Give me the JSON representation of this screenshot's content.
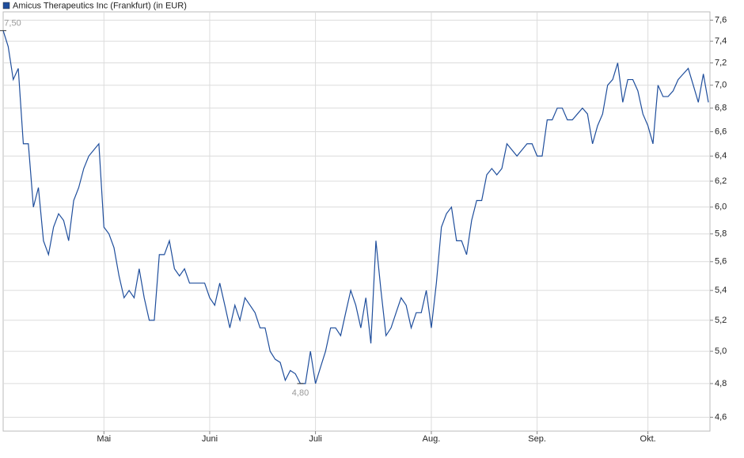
{
  "chart_data": {
    "type": "line",
    "log_y": true,
    "grid": true,
    "categories": [
      null,
      null,
      null,
      null,
      null,
      null,
      null,
      null,
      null,
      null,
      null,
      null,
      null,
      null,
      null,
      null,
      null,
      null,
      null,
      null,
      "Mai",
      null,
      null,
      null,
      null,
      null,
      null,
      null,
      null,
      null,
      null,
      null,
      null,
      null,
      null,
      null,
      null,
      null,
      null,
      null,
      null,
      "Juni",
      null,
      null,
      null,
      null,
      null,
      null,
      null,
      null,
      null,
      null,
      null,
      null,
      null,
      null,
      null,
      null,
      null,
      null,
      null,
      null,
      "Juli",
      null,
      null,
      null,
      null,
      null,
      null,
      null,
      null,
      null,
      null,
      null,
      null,
      null,
      null,
      null,
      null,
      null,
      null,
      null,
      null,
      null,
      null,
      "Aug.",
      null,
      null,
      null,
      null,
      null,
      null,
      null,
      null,
      null,
      null,
      null,
      null,
      null,
      null,
      null,
      null,
      null,
      null,
      null,
      null,
      "Sep.",
      null,
      null,
      null,
      null,
      null,
      null,
      null,
      null,
      null,
      null,
      null,
      null,
      null,
      null,
      null,
      null,
      null,
      null,
      null,
      null,
      null,
      "Okt.",
      null,
      null,
      null,
      null,
      null,
      null,
      null,
      null,
      null,
      null,
      null,
      null
    ],
    "series": [
      {
        "name": "Amicus Therapeutics Inc (Frankfurt) (in EUR)",
        "color": "#1f4e9c",
        "values": [
          7.5,
          7.35,
          7.05,
          7.15,
          6.5,
          6.5,
          6.0,
          6.15,
          5.75,
          5.65,
          5.85,
          5.95,
          5.9,
          5.75,
          6.05,
          6.15,
          6.3,
          6.4,
          6.45,
          6.5,
          5.85,
          5.8,
          5.7,
          5.5,
          5.35,
          5.4,
          5.35,
          5.55,
          5.35,
          5.2,
          5.2,
          5.65,
          5.65,
          5.75,
          5.55,
          5.5,
          5.55,
          5.45,
          5.45,
          5.45,
          5.45,
          5.35,
          5.3,
          5.45,
          5.3,
          5.15,
          5.3,
          5.2,
          5.35,
          5.3,
          5.25,
          5.15,
          5.15,
          5.0,
          4.95,
          4.93,
          4.82,
          4.88,
          4.86,
          4.8,
          4.8,
          5.0,
          4.8,
          4.9,
          5.0,
          5.15,
          5.15,
          5.1,
          5.25,
          5.4,
          5.3,
          5.15,
          5.35,
          5.05,
          5.75,
          5.4,
          5.1,
          5.15,
          5.25,
          5.35,
          5.3,
          5.15,
          5.25,
          5.25,
          5.4,
          5.15,
          5.45,
          5.85,
          5.95,
          6.0,
          5.75,
          5.75,
          5.65,
          5.9,
          6.05,
          6.05,
          6.25,
          6.3,
          6.25,
          6.3,
          6.5,
          6.45,
          6.4,
          6.45,
          6.5,
          6.5,
          6.4,
          6.4,
          6.7,
          6.7,
          6.8,
          6.8,
          6.7,
          6.7,
          6.75,
          6.8,
          6.75,
          6.5,
          6.65,
          6.75,
          7.0,
          7.05,
          7.2,
          6.85,
          7.05,
          7.05,
          6.95,
          6.75,
          6.65,
          6.5,
          7.0,
          6.9,
          6.9,
          6.95,
          7.05,
          7.1,
          7.15,
          7.0,
          6.85,
          7.1,
          6.85
        ],
        "value_labels": [
          "7,50",
          null,
          null,
          null,
          null,
          null,
          null,
          null,
          null,
          null,
          null,
          null,
          null,
          null,
          null,
          null,
          null,
          null,
          null,
          null,
          null,
          null,
          null,
          null,
          null,
          null,
          null,
          null,
          null,
          null,
          null,
          null,
          null,
          null,
          null,
          null,
          null,
          null,
          null,
          null,
          null,
          null,
          null,
          null,
          null,
          null,
          null,
          null,
          null,
          null,
          null,
          null,
          null,
          null,
          null,
          null,
          null,
          null,
          null,
          "4,80",
          null,
          null,
          null,
          null,
          null,
          null,
          null,
          null,
          null,
          null,
          null,
          null,
          null,
          null,
          null,
          null,
          null,
          null,
          null,
          null,
          null,
          null,
          null,
          null,
          null,
          null,
          null,
          null,
          null,
          null,
          null,
          null,
          null,
          null,
          null,
          null,
          null,
          null,
          null,
          null,
          null,
          null,
          null,
          null,
          null,
          null,
          null,
          null,
          null,
          null,
          null,
          null,
          null,
          null,
          null,
          null,
          null,
          null,
          null,
          null,
          null,
          null,
          null,
          null,
          null,
          null,
          null,
          null,
          null,
          null,
          null,
          null,
          null,
          null,
          null,
          null,
          null,
          null,
          null,
          null,
          null
        ]
      }
    ],
    "ylim": [
      4.52,
      7.68
    ],
    "yticks": [
      {
        "value": 4.6,
        "label": "4,6"
      },
      {
        "value": 4.8,
        "label": "4,8"
      },
      {
        "value": 5.0,
        "label": "5,0"
      },
      {
        "value": 5.2,
        "label": "5,2"
      },
      {
        "value": 5.4,
        "label": "5,4"
      },
      {
        "value": 5.6,
        "label": "5,6"
      },
      {
        "value": 5.8,
        "label": "5,8"
      },
      {
        "value": 6.0,
        "label": "6,0"
      },
      {
        "value": 6.2,
        "label": "6,2"
      },
      {
        "value": 6.4,
        "label": "6,4"
      },
      {
        "value": 6.6,
        "label": "6,6"
      },
      {
        "value": 6.8,
        "label": "6,8"
      },
      {
        "value": 7.0,
        "label": "7,0"
      },
      {
        "value": 7.2,
        "label": "7,2"
      },
      {
        "value": 7.4,
        "label": "7,4"
      },
      {
        "value": 7.6,
        "label": "7,6"
      }
    ]
  }
}
